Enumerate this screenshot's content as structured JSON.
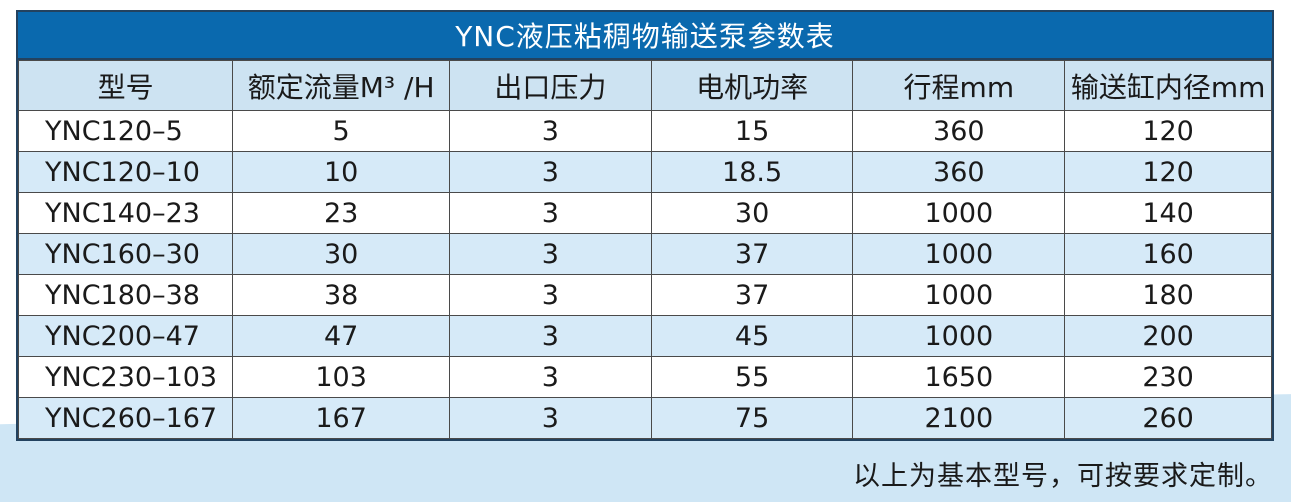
{
  "page": {
    "footer_note": "以上为基本型号，可按要求定制。"
  },
  "colors": {
    "title_bar_bg": "#0a69ae",
    "title_text": "#ffffff",
    "header_row_bg": "#cde3f2",
    "alt_row_bg": "#d6eaf8",
    "row_bg": "#ffffff",
    "grid_line": "#4a4a4a",
    "outer_border": "#23425f",
    "bottom_band": "#cfe6f5",
    "text": "#1a1a1a"
  },
  "table": {
    "title": "YNC液压粘稠物输送泵参数表",
    "columns": [
      "型号",
      "额定流量M³ /H",
      "出口压力",
      "电机功率",
      "行程mm",
      "输送缸内径mm"
    ],
    "column_widths_pct": [
      17.1,
      17.3,
      16.1,
      16.1,
      16.9,
      16.5
    ],
    "rows": [
      [
        "YNC120–5",
        "5",
        "3",
        "15",
        "360",
        "120"
      ],
      [
        "YNC120–10",
        "10",
        "3",
        "18.5",
        "360",
        "120"
      ],
      [
        "YNC140–23",
        "23",
        "3",
        "30",
        "1000",
        "140"
      ],
      [
        "YNC160–30",
        "30",
        "3",
        "37",
        "1000",
        "160"
      ],
      [
        "YNC180–38",
        "38",
        "3",
        "37",
        "1000",
        "180"
      ],
      [
        "YNC200–47",
        "47",
        "3",
        "45",
        "1000",
        "200"
      ],
      [
        "YNC230–103",
        "103",
        "3",
        "55",
        "1650",
        "230"
      ],
      [
        "YNC260–167",
        "167",
        "3",
        "75",
        "2100",
        "260"
      ]
    ]
  }
}
